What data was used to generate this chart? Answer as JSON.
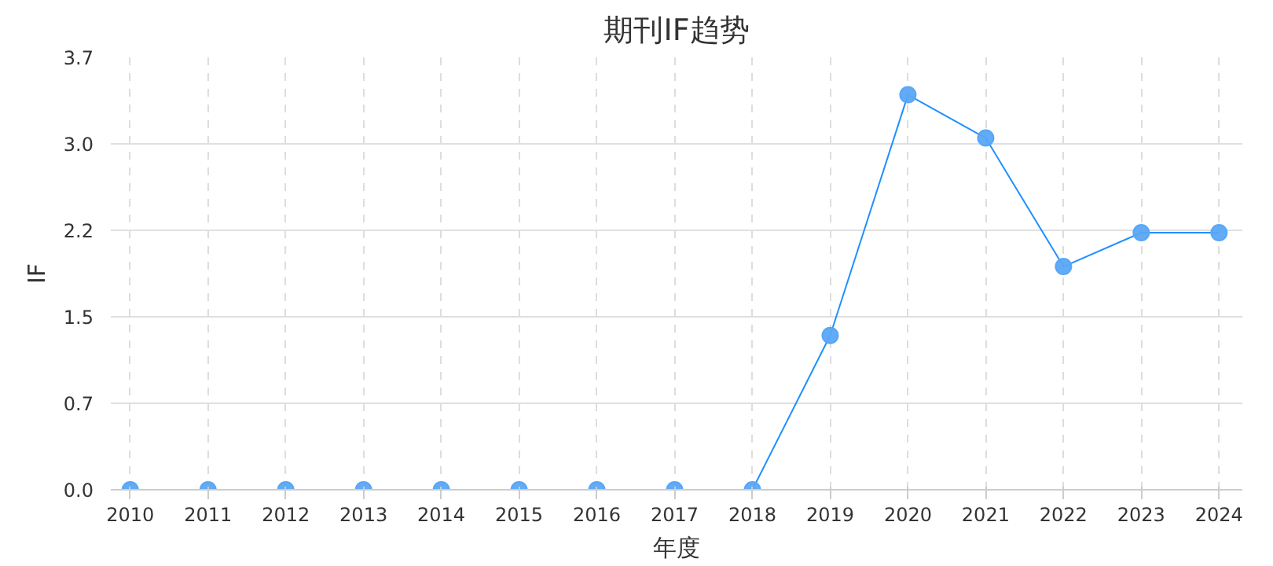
{
  "chart_data": {
    "type": "line",
    "title": "期刊IF趋势",
    "xlabel": "年度",
    "ylabel": "IF",
    "categories": [
      "2010",
      "2011",
      "2012",
      "2013",
      "2014",
      "2015",
      "2016",
      "2017",
      "2018",
      "2019",
      "2020",
      "2021",
      "2022",
      "2023",
      "2024"
    ],
    "series": [
      {
        "color": "#1e90ff",
        "values": [
          0,
          0,
          0,
          0,
          0,
          0,
          0,
          0,
          0,
          1.32,
          3.38,
          3.01,
          1.91,
          2.2,
          2.2
        ]
      }
    ],
    "ylim": [
      0,
      3.7
    ],
    "yticks": [
      {
        "value": 0,
        "label": "0.0"
      },
      {
        "value": 0.74,
        "label": "0.7"
      },
      {
        "value": 1.48,
        "label": "1.5"
      },
      {
        "value": 2.22,
        "label": "2.2"
      },
      {
        "value": 2.96,
        "label": "3.0"
      },
      {
        "value": 3.7,
        "label": "3.7"
      }
    ],
    "grid": true,
    "marker": "circle",
    "line_style": "solid"
  }
}
